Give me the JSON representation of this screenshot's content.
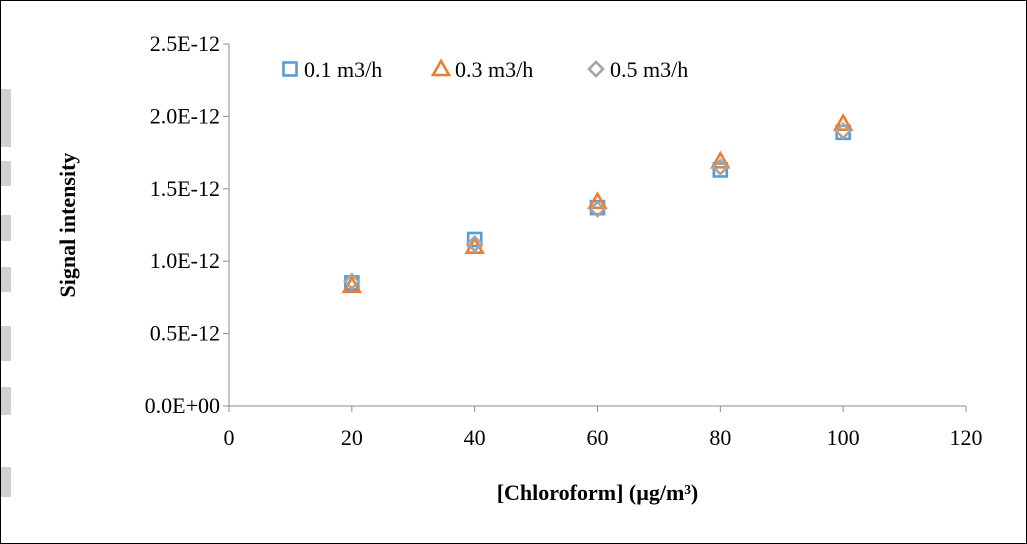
{
  "chart_data": {
    "type": "scatter",
    "title": "",
    "xlabel": "[Chloroform] (µg/m³)",
    "ylabel": "Signal intensity",
    "xlim": [
      0,
      120
    ],
    "ylim": [
      0,
      2.5e-12
    ],
    "x_ticks": [
      "0",
      "20",
      "40",
      "60",
      "80",
      "100",
      "120"
    ],
    "y_ticks": [
      "0.0E+00",
      "0.5E-12",
      "1.0E-12",
      "1.5E-12",
      "2.0E-12",
      "2.5E-12"
    ],
    "grid": false,
    "legend_position": "top-left",
    "series": [
      {
        "name": "0.1 m3/h",
        "marker": "square",
        "color": "#5b9bd5",
        "x": [
          20,
          40,
          60,
          80,
          100
        ],
        "y": [
          8.5e-13,
          1.15e-12,
          1.37e-12,
          1.63e-12,
          1.89e-12
        ]
      },
      {
        "name": "0.3 m3/h",
        "marker": "triangle",
        "color": "#ed7d31",
        "x": [
          20,
          40,
          60,
          80,
          100
        ],
        "y": [
          8.3e-13,
          1.1e-12,
          1.41e-12,
          1.69e-12,
          1.95e-12
        ]
      },
      {
        "name": "0.5 m3/h",
        "marker": "diamond",
        "color": "#a5a5a5",
        "x": [
          20,
          40,
          60,
          80,
          100
        ],
        "y": [
          8.6e-13,
          1.12e-12,
          1.36e-12,
          1.65e-12,
          1.9e-12
        ]
      }
    ]
  }
}
